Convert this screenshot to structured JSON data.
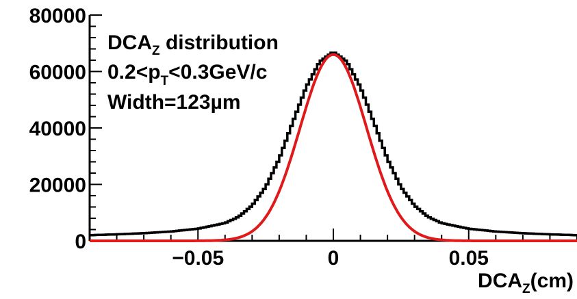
{
  "chart_data": {
    "type": "line",
    "title": "",
    "xlabel": {
      "main": "DCA",
      "sub": "Z",
      "suffix": "(cm)"
    },
    "ylabel": "",
    "xlim": [
      -0.09,
      0.09
    ],
    "ylim": [
      0,
      80000
    ],
    "grid": false,
    "x_ticks": [
      -0.05,
      0,
      0.05
    ],
    "x_tick_labels": [
      "−0.05",
      "0",
      "0.05"
    ],
    "y_ticks": [
      0,
      20000,
      40000,
      60000,
      80000
    ],
    "y_tick_labels": [
      "0",
      "20000",
      "40000",
      "60000",
      "80000"
    ],
    "annotations": {
      "line1": {
        "main": "DCA",
        "sub": "Z",
        "rest": " distribution"
      },
      "line2": {
        "pre": "0.2<p",
        "sub": "T",
        "rest": "<0.3GeV/c"
      },
      "line3": "Width=123µm"
    },
    "series": [
      {
        "style": "histogram-steps",
        "color": "#000000",
        "x": [
          -0.09,
          -0.08,
          -0.07,
          -0.06,
          -0.05,
          -0.04,
          -0.035,
          -0.03,
          -0.025,
          -0.02,
          -0.015,
          -0.01,
          -0.005,
          0.0,
          0.005,
          0.01,
          0.015,
          0.02,
          0.025,
          0.03,
          0.035,
          0.04,
          0.05,
          0.06,
          0.07,
          0.08,
          0.09
        ],
        "y": [
          2000,
          2300,
          2700,
          3300,
          4300,
          6300,
          8500,
          12500,
          19000,
          29000,
          42000,
          54500,
          63500,
          67000,
          63500,
          54500,
          42000,
          29000,
          19000,
          12500,
          8500,
          6300,
          4300,
          3300,
          2700,
          2300,
          2000
        ]
      },
      {
        "style": "gaussian-fit",
        "color": "#e0191b",
        "amplitude": 66000,
        "mean": 0,
        "sigma": 0.0123
      }
    ]
  }
}
